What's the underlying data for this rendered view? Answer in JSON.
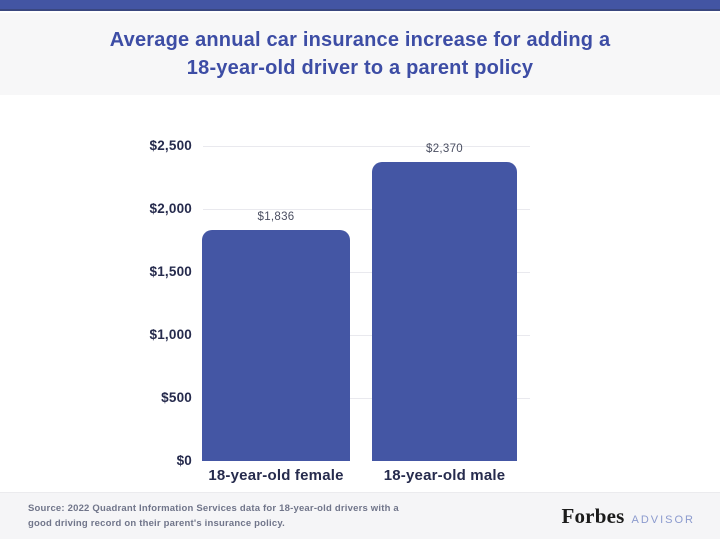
{
  "top_bar": {
    "color": "#4355a3"
  },
  "header": {
    "title_line1": "Average annual car insurance increase for adding a",
    "title_line2": "18-year-old driver to a parent policy",
    "title_color": "#3d4da5",
    "background": "#f7f7f8"
  },
  "chart_data": {
    "type": "bar",
    "title": "Average annual car insurance increase for adding a 18-year-old driver to a parent policy",
    "categories": [
      "18-year-old female",
      "18-year-old male"
    ],
    "values": [
      1836,
      2370
    ],
    "value_labels": [
      "$1,836",
      "$2,370"
    ],
    "yticks": [
      {
        "value": 0,
        "label": "$0"
      },
      {
        "value": 500,
        "label": "$500"
      },
      {
        "value": 1000,
        "label": "$1,000"
      },
      {
        "value": 1500,
        "label": "$1,500"
      },
      {
        "value": 2000,
        "label": "$2,000"
      },
      {
        "value": 2500,
        "label": "$2,500"
      }
    ],
    "ylim": [
      0,
      2500
    ],
    "xlabel": "",
    "ylabel": "",
    "grid": "horizontal-light",
    "legend": "none",
    "bar_color": "#4456a4"
  },
  "footer": {
    "source_line1": "Source: 2022 Quadrant Information Services data for 18-year-old drivers with a",
    "source_line2": "good driving record on their parent's insurance policy.",
    "brand_name": "Forbes",
    "brand_suffix": "ADVISOR"
  },
  "colors": {
    "accent": "#4456a4",
    "grid": "#e9e9ee",
    "axis_text": "#262b4d",
    "value_label_text": "#4a4e61",
    "source_text": "#70758a",
    "brand_suffix_color": "#8b9ace"
  }
}
